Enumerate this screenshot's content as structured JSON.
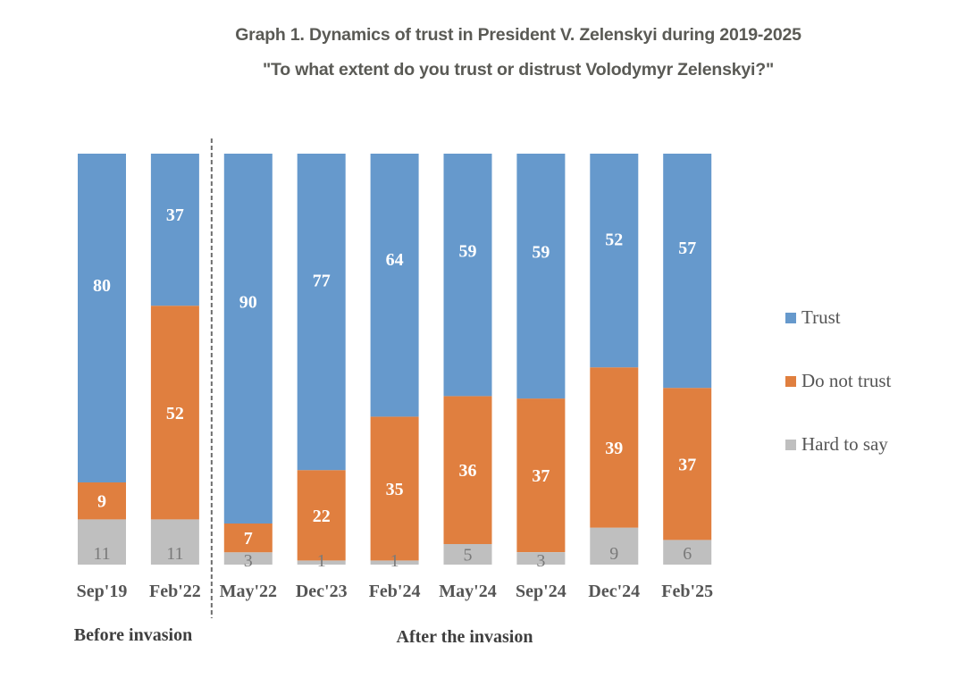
{
  "chart_data": {
    "type": "bar",
    "stacked": true,
    "normalized": true,
    "title": "Graph 1. Dynamics of trust in President V. Zelenskyi during 2019-2025",
    "subtitle": "\"To what extent do you trust or distrust Volodymyr Zelenskyi?\"",
    "xlabel": "",
    "ylabel": "",
    "categories": [
      "Sep'19",
      "Feb'22",
      "May'22",
      "Dec'23",
      "Feb'24",
      "May'24",
      "Sep'24",
      "Dec'24",
      "Feb'25"
    ],
    "series": [
      {
        "name": "Hard to say",
        "color": "#bfbfbf",
        "values": [
          11,
          11,
          3,
          1,
          1,
          5,
          3,
          9,
          6
        ]
      },
      {
        "name": "Do not trust",
        "color": "#e07f3f",
        "values": [
          9,
          52,
          7,
          22,
          35,
          36,
          37,
          39,
          37
        ]
      },
      {
        "name": "Trust",
        "color": "#6699cc",
        "values": [
          80,
          37,
          90,
          77,
          64,
          59,
          59,
          52,
          57
        ]
      }
    ],
    "legend": {
      "placement": "right",
      "entries": [
        "Trust",
        "Do not trust",
        "Hard to say"
      ]
    },
    "groups": [
      {
        "label": "Before invasion",
        "categories": [
          "Sep'19",
          "Feb'22"
        ]
      },
      {
        "label": "After the invasion",
        "categories": [
          "May'22",
          "Dec'23",
          "Feb'24",
          "May'24",
          "Sep'24",
          "Dec'24",
          "Feb'25"
        ]
      }
    ],
    "divider": {
      "style": "dashed",
      "between": [
        "Feb'22",
        "May'22"
      ]
    },
    "grid": false,
    "ylim": [
      0,
      100
    ]
  }
}
